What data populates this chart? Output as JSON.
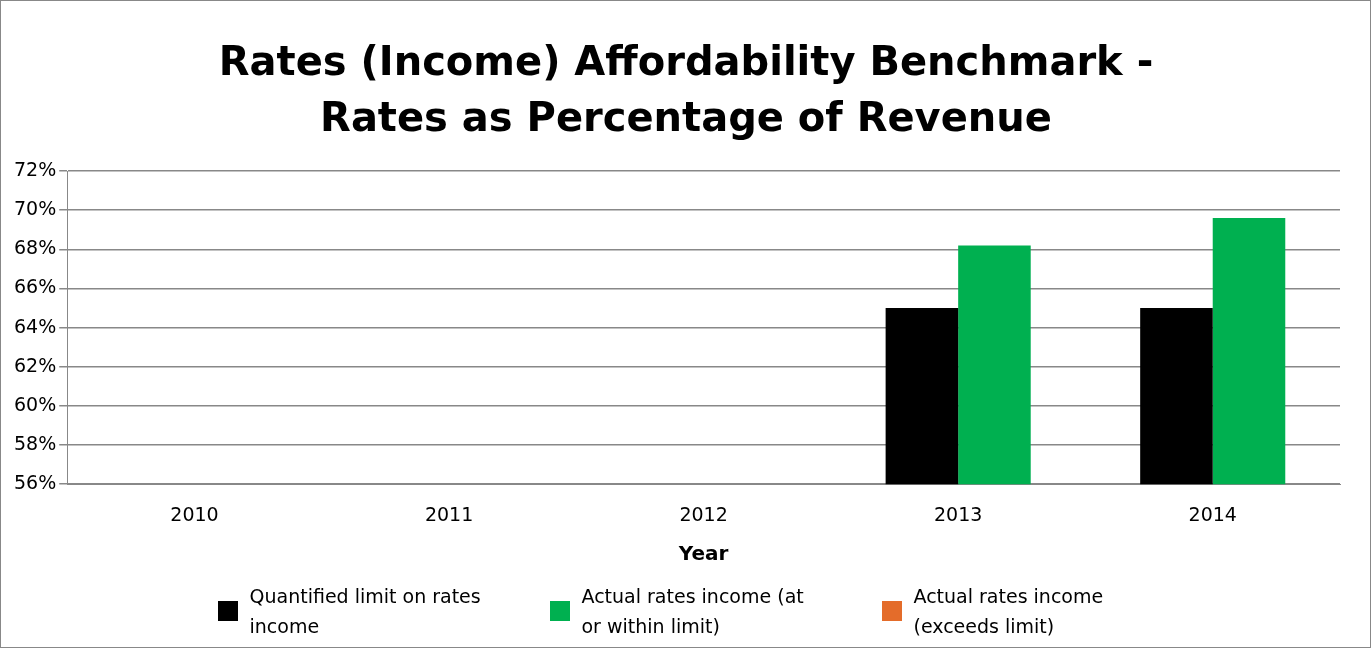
{
  "chart_data": {
    "type": "bar",
    "title": "Rates (Income) Affordability Benchmark - Rates as Percentage of Revenue",
    "xlabel": "Year",
    "categories": [
      "2010",
      "2011",
      "2012",
      "2013",
      "2014"
    ],
    "series": [
      {
        "name": "Quantified limit on rates income",
        "color": "#000000",
        "values": [
          null,
          null,
          null,
          65,
          65
        ]
      },
      {
        "name": "Actual rates income (at or within limit)",
        "color": "#00b050",
        "values": [
          null,
          null,
          null,
          68.2,
          69.6
        ]
      },
      {
        "name": "Actual rates income (exceeds limit)",
        "color": "#e46c2a",
        "values": [
          null,
          null,
          null,
          null,
          null
        ]
      }
    ],
    "ylim": [
      56,
      72
    ],
    "yticks": [
      {
        "value": 56,
        "label": "56%"
      },
      {
        "value": 58,
        "label": "58%"
      },
      {
        "value": 60,
        "label": "60%"
      },
      {
        "value": 62,
        "label": "62%"
      },
      {
        "value": 64,
        "label": "64%"
      },
      {
        "value": 66,
        "label": "66%"
      },
      {
        "value": 68,
        "label": "68%"
      },
      {
        "value": 70,
        "label": "70%"
      },
      {
        "value": 72,
        "label": "72%"
      }
    ],
    "grid": "y",
    "legend": "bottom"
  }
}
